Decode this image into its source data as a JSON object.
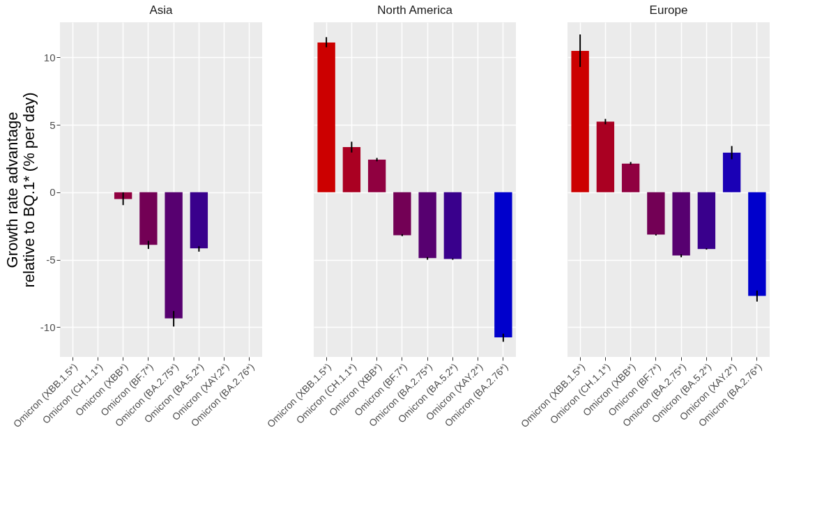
{
  "chart_data": [
    {
      "type": "bar",
      "title": "Asia",
      "ylabel": "Growth rate advantage\nrelative to BQ.1* (% per day)",
      "categories": [
        "Omicron (XBB.1.5*)",
        "Omicron (CH.1.1*)",
        "Omicron (XBB*)",
        "Omicron (BF.7*)",
        "Omicron (BA.2.75*)",
        "Omicron (BA.5.2*)",
        "Omicron (XAY.2*)",
        "Omicron (BA.2.76*)"
      ],
      "values": [
        null,
        null,
        -0.5,
        -3.9,
        -9.35,
        -4.15,
        null,
        null
      ],
      "errors": [
        null,
        null,
        [
          -0.95,
          0.0
        ],
        [
          -4.2,
          -3.6
        ],
        [
          -9.95,
          -8.8
        ],
        [
          -4.4,
          -4.0
        ],
        null,
        null
      ],
      "colors": [
        "#cc0000",
        "#aa0022",
        "#900040",
        "#730055",
        "#570070",
        "#39008c",
        "#1a00b5",
        "#0000cc"
      ],
      "ylim": [
        -12.2,
        12.6
      ],
      "yticks": [
        -10,
        -5,
        0,
        5,
        10
      ],
      "grid": true
    },
    {
      "type": "bar",
      "title": "North America",
      "categories": [
        "Omicron (XBB.1.5*)",
        "Omicron (CH.1.1*)",
        "Omicron (XBB*)",
        "Omicron (BF.7*)",
        "Omicron (BA.2.75*)",
        "Omicron (BA.5.2*)",
        "Omicron (XAY.2*)",
        "Omicron (BA.2.76*)"
      ],
      "values": [
        11.1,
        3.35,
        2.42,
        -3.18,
        -4.88,
        -4.94,
        null,
        -10.75
      ],
      "errors": [
        [
          10.75,
          11.5
        ],
        [
          2.95,
          3.75
        ],
        [
          2.3,
          2.55
        ],
        [
          -3.25,
          -3.1
        ],
        [
          -5.0,
          -4.8
        ],
        [
          -5.0,
          -4.9
        ],
        null,
        [
          -11.08,
          -10.48
        ]
      ],
      "colors": [
        "#cc0000",
        "#aa0022",
        "#900040",
        "#730055",
        "#570070",
        "#39008c",
        "#1a00b5",
        "#0000cc"
      ],
      "ylim": [
        -12.2,
        12.6
      ],
      "yticks": [
        -10,
        -5,
        0,
        5,
        10
      ],
      "grid": true,
      "tick_labels": "x"
    },
    {
      "type": "bar",
      "title": "Europe",
      "categories": [
        "Omicron (XBB.1.5*)",
        "Omicron (CH.1.1*)",
        "Omicron (XBB*)",
        "Omicron (BF.7*)",
        "Omicron (BA.2.75*)",
        "Omicron (BA.5.2*)",
        "Omicron (XAY.2*)",
        "Omicron (BA.2.76*)"
      ],
      "values": [
        10.48,
        5.24,
        2.12,
        -3.13,
        -4.68,
        -4.2,
        2.94,
        -7.68
      ],
      "errors": [
        [
          9.29,
          11.7
        ],
        [
          5.04,
          5.44
        ],
        [
          2.05,
          2.25
        ],
        [
          -3.2,
          -3.1
        ],
        [
          -4.82,
          -4.6
        ],
        [
          -4.25,
          -4.15
        ],
        [
          2.45,
          3.43
        ],
        [
          -8.1,
          -7.28
        ]
      ],
      "colors": [
        "#cc0000",
        "#aa0022",
        "#900040",
        "#730055",
        "#570070",
        "#39008c",
        "#1a00b5",
        "#0000cc"
      ],
      "ylim": [
        -12.2,
        12.6
      ],
      "yticks": [
        -10,
        -5,
        0,
        5,
        10
      ],
      "grid": true,
      "tick_labels": "x"
    }
  ]
}
